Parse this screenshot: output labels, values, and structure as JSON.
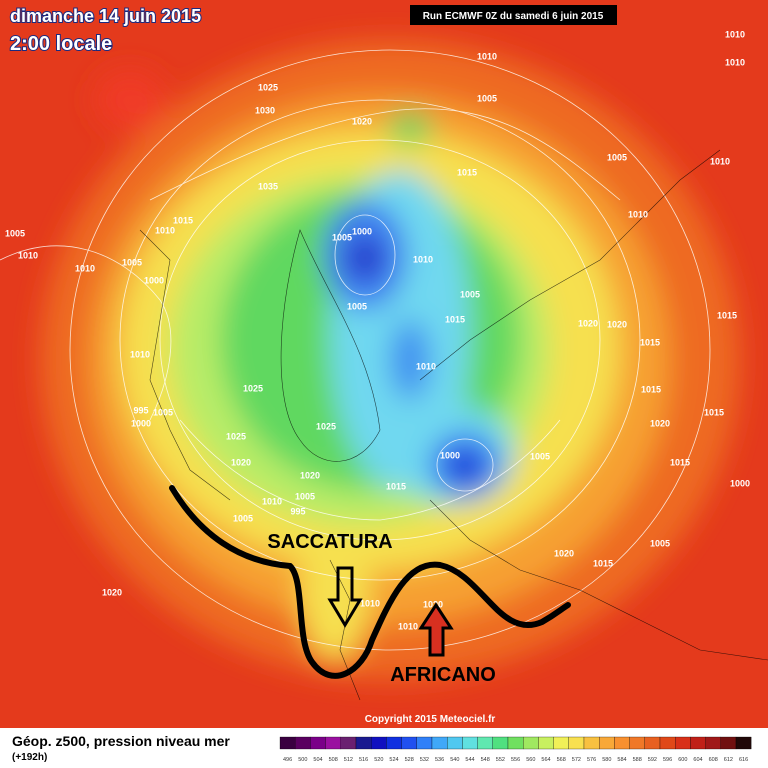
{
  "header": {
    "date": "dimanche 14 juin 2015",
    "time": "2:00 locale",
    "run": "Run ECMWF 0Z du samedi 6 juin 2015"
  },
  "annotations": {
    "trough": "SACCATURA",
    "ridge": "AFRICANO"
  },
  "footer": {
    "title": "Géop. z500, pression niveau mer",
    "lead": "(+192h)",
    "copyright": "Copyright 2015 Meteociel.fr"
  },
  "scale": {
    "labels": [
      "496",
      "500",
      "504",
      "508",
      "512",
      "516",
      "520",
      "524",
      "528",
      "532",
      "536",
      "540",
      "544",
      "548",
      "552",
      "556",
      "560",
      "564",
      "568",
      "572",
      "576",
      "580",
      "584",
      "588",
      "592",
      "596",
      "600",
      "604",
      "608",
      "612",
      "616"
    ],
    "colors": [
      "#3a0040",
      "#5a0060",
      "#7a0088",
      "#9a10a0",
      "#6a2070",
      "#1a1a90",
      "#1010c0",
      "#1030e0",
      "#2050f0",
      "#3080f8",
      "#40a8f8",
      "#50c8f0",
      "#60e0e0",
      "#60e8b0",
      "#50e080",
      "#70e060",
      "#a0e860",
      "#c8f060",
      "#f0f058",
      "#f8e050",
      "#f8c040",
      "#f8a838",
      "#f89030",
      "#f07828",
      "#e86020",
      "#e04818",
      "#d83018",
      "#c02018",
      "#a01818",
      "#701010",
      "#200808"
    ]
  },
  "isobars": [
    "1010",
    "1010",
    "1025",
    "1030",
    "1035",
    "1020",
    "1010",
    "1005",
    "1015",
    "1005",
    "1010",
    "1010",
    "1015",
    "1005",
    "1010",
    "1010",
    "1010",
    "1005",
    "1000",
    "1005",
    "1000",
    "1010",
    "1005",
    "1005",
    "1015",
    "1020",
    "1020",
    "1015",
    "1010",
    "1010",
    "1025",
    "995",
    "1005",
    "1000",
    "1025",
    "1025",
    "1020",
    "1000",
    "1020",
    "1015",
    "1010",
    "1005",
    "995",
    "1005",
    "1020",
    "1015",
    "1005",
    "1000",
    "1020",
    "1010",
    "1020",
    "1010",
    "1015",
    "1015",
    "1015",
    "1020",
    "1015",
    "1005"
  ]
}
